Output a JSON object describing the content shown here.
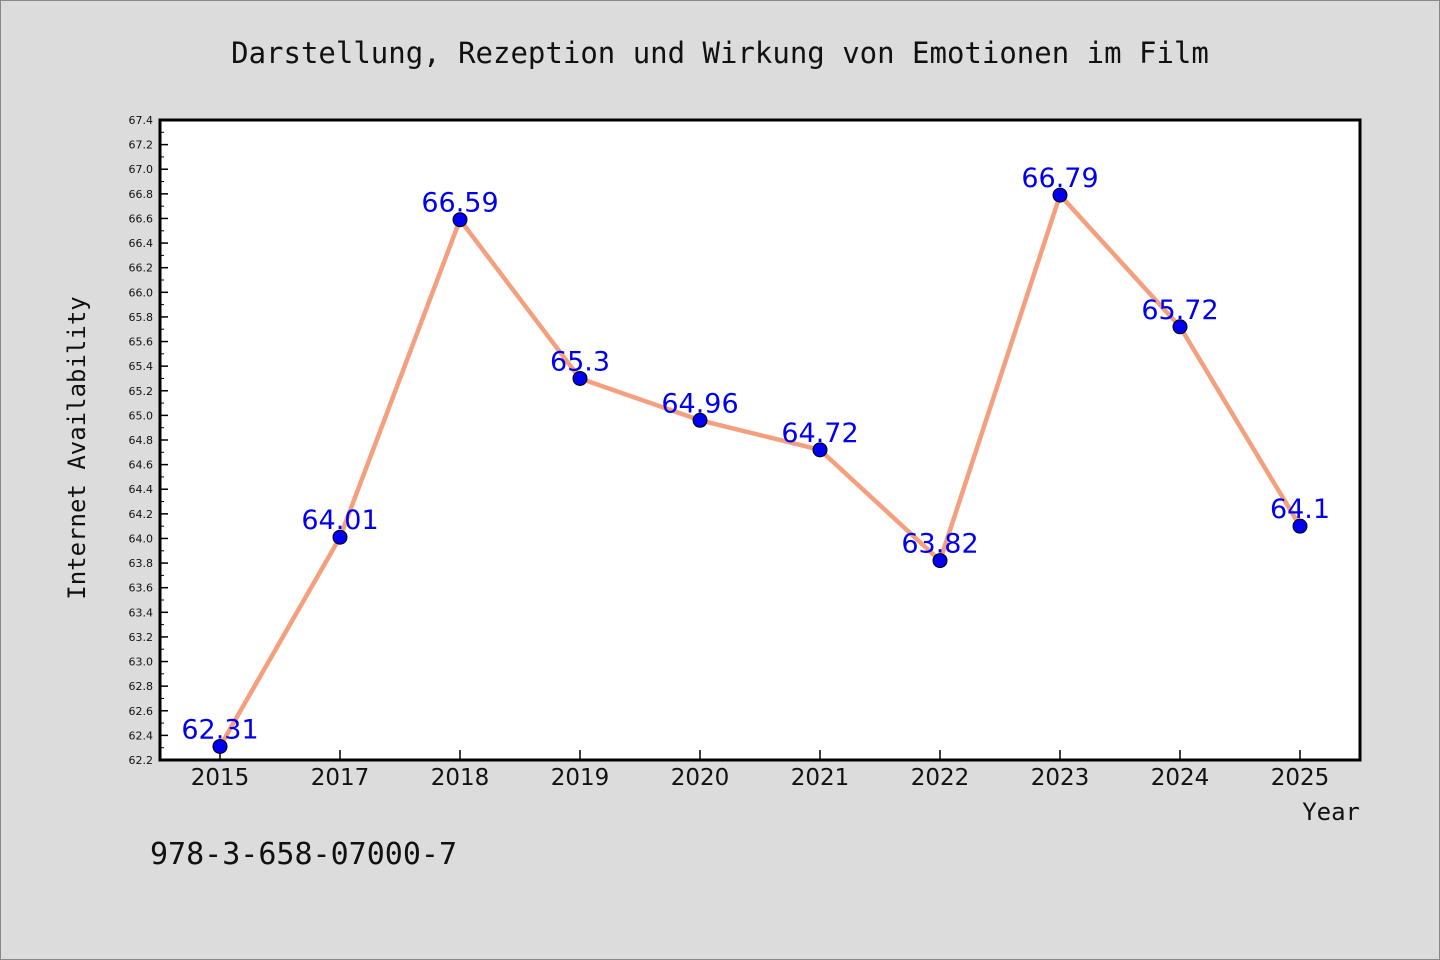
{
  "chart_data": {
    "type": "line",
    "title": "Darstellung, Rezeption und Wirkung von Emotionen im Film",
    "xlabel": "Year",
    "ylabel": "Internet Availability",
    "categories": [
      "2015",
      "2017",
      "2018",
      "2019",
      "2020",
      "2021",
      "2022",
      "2023",
      "2024",
      "2025"
    ],
    "series": [
      {
        "values": [
          62.31,
          64.01,
          66.59,
          65.3,
          64.96,
          64.72,
          63.82,
          66.79,
          65.72,
          64.1
        ],
        "labels": [
          "62.31",
          "64.01",
          "66.59",
          "65.3",
          "64.96",
          "64.72",
          "63.82",
          "66.79",
          "65.72",
          "64.1"
        ]
      }
    ],
    "ylim": [
      62.2,
      67.4
    ],
    "ytick_step": 0.2,
    "grid": false,
    "legend": "none",
    "line_color": "#f4a07e",
    "marker_color": "#0000ee",
    "label_color": "#0000ee"
  },
  "footer": {
    "isbn": "978-3-658-07000-7"
  }
}
